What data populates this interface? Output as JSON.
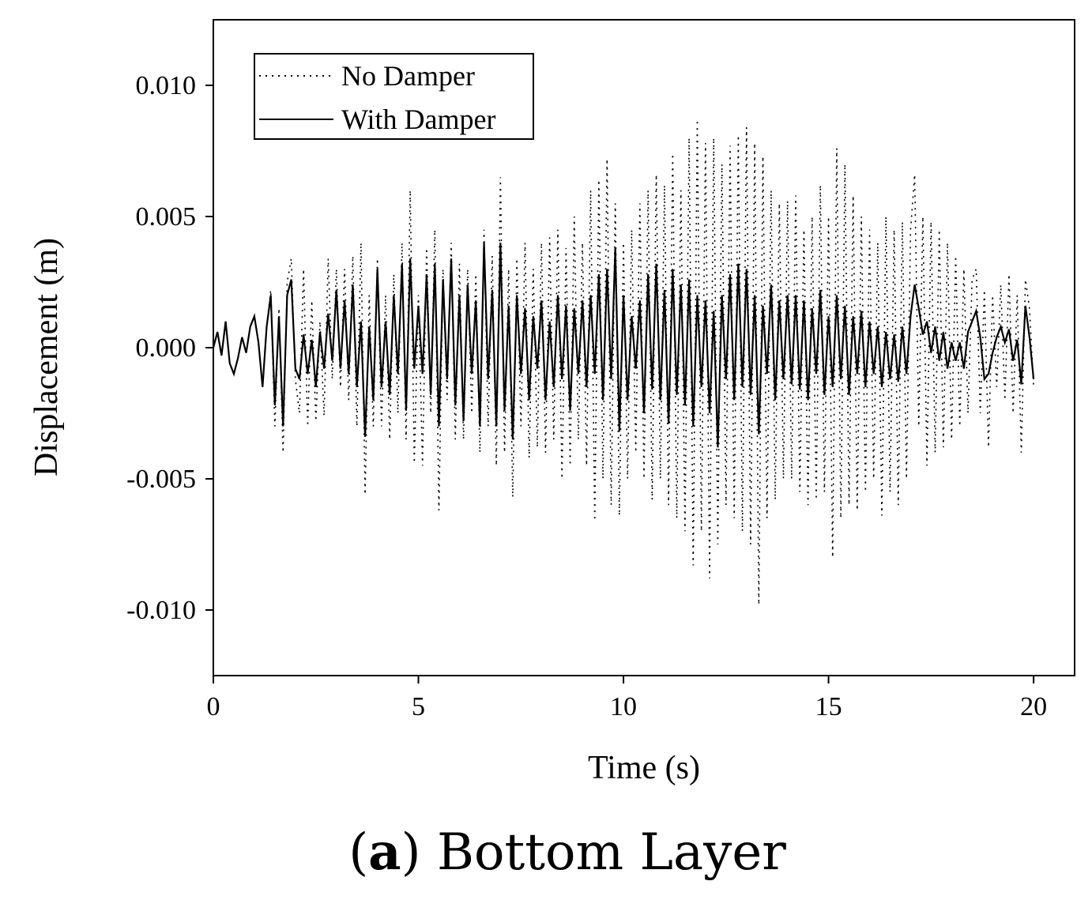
{
  "chart_data": {
    "type": "line",
    "x_label": "Time (s)",
    "y_label": "Displacement (m)",
    "caption_parts": [
      "(",
      "a",
      ") Bottom Layer"
    ],
    "xlim": [
      0,
      21.0
    ],
    "xticks": [
      0,
      5,
      10,
      15,
      20
    ],
    "ylim": [
      -0.0125,
      0.0125
    ],
    "yticks": [
      {
        "value": 0.01,
        "label": "0.010"
      },
      0.005,
      {
        "value": 0,
        "label": "0.000"
      },
      -0.005,
      {
        "value": -0.01,
        "label": "-0.010"
      }
    ],
    "legend": "upper left",
    "x": [
      0,
      0.1,
      0.2,
      0.3,
      0.4,
      0.5,
      0.6,
      0.7,
      0.8,
      0.9,
      1,
      1.1,
      1.2,
      1.3,
      1.4,
      1.5,
      1.6,
      1.7,
      1.8,
      1.9,
      2,
      2.1,
      2.2,
      2.3,
      2.4,
      2.5,
      2.6,
      2.7,
      2.8,
      2.9,
      3,
      3.1,
      3.2,
      3.3,
      3.4,
      3.5,
      3.6,
      3.7,
      3.8,
      3.9,
      4,
      4.1,
      4.2,
      4.3,
      4.4,
      4.5,
      4.6,
      4.7,
      4.8,
      4.9,
      5,
      5.1,
      5.2,
      5.3,
      5.4,
      5.5,
      5.6,
      5.7,
      5.8,
      5.9,
      6,
      6.1,
      6.2,
      6.3,
      6.4,
      6.5,
      6.6,
      6.7,
      6.8,
      6.9,
      7,
      7.1,
      7.2,
      7.3,
      7.4,
      7.5,
      7.6,
      7.7,
      7.8,
      7.9,
      8,
      8.1,
      8.2,
      8.3,
      8.4,
      8.5,
      8.6,
      8.7,
      8.8,
      8.9,
      9,
      9.1,
      9.2,
      9.3,
      9.4,
      9.5,
      9.6,
      9.7,
      9.8,
      9.9,
      10,
      10.1,
      10.2,
      10.3,
      10.4,
      10.5,
      10.6,
      10.7,
      10.8,
      10.9,
      11,
      11.1,
      11.2,
      11.3,
      11.4,
      11.5,
      11.6,
      11.7,
      11.8,
      11.9,
      12,
      12.1,
      12.2,
      12.3,
      12.4,
      12.5,
      12.6,
      12.7,
      12.8,
      12.9,
      13,
      13.1,
      13.2,
      13.3,
      13.4,
      13.5,
      13.6,
      13.7,
      13.8,
      13.9,
      14,
      14.1,
      14.2,
      14.3,
      14.4,
      14.5,
      14.6,
      14.7,
      14.8,
      14.9,
      15,
      15.1,
      15.2,
      15.3,
      15.4,
      15.5,
      15.6,
      15.7,
      15.8,
      15.9,
      16,
      16.1,
      16.2,
      16.3,
      16.4,
      16.5,
      16.6,
      16.7,
      16.8,
      16.9,
      17,
      17.1,
      17.2,
      17.3,
      17.4,
      17.5,
      17.6,
      17.7,
      17.8,
      17.9,
      18,
      18.1,
      18.2,
      18.3,
      18.4,
      18.5,
      18.6,
      18.7,
      18.8,
      18.9,
      19,
      19.1,
      19.2,
      19.3,
      19.4,
      19.5,
      19.6,
      19.7,
      19.8,
      19.9,
      20
    ],
    "series": [
      {
        "name": "No Damper",
        "color": "#000000",
        "style": "dotted",
        "values": [
          0,
          0.0006,
          -0.0003,
          0.001,
          -0.0006,
          -0.001,
          -0.0004,
          0.0004,
          -0.0002,
          0.0008,
          0.0012,
          0.0002,
          -0.0015,
          0.0008,
          0.0022,
          -0.003,
          0.0015,
          -0.004,
          0.0025,
          0.0034,
          -0.0012,
          -0.0025,
          0.003,
          -0.003,
          0.0018,
          -0.0028,
          0.001,
          -0.0026,
          0.0034,
          -0.0012,
          0.003,
          -0.0015,
          0.003,
          -0.002,
          0.0035,
          -0.003,
          0.004,
          -0.0056,
          0.002,
          -0.003,
          0.0034,
          -0.003,
          0.002,
          -0.0035,
          0.0028,
          -0.0025,
          0.004,
          -0.0035,
          0.006,
          -0.0044,
          0.002,
          -0.0045,
          0.0038,
          -0.0025,
          0.0045,
          -0.0062,
          0.003,
          -0.002,
          0.004,
          -0.0035,
          0.0032,
          -0.0035,
          0.003,
          -0.0025,
          0.0028,
          -0.004,
          0.0045,
          -0.003,
          0.0035,
          -0.0045,
          0.0065,
          -0.004,
          0.003,
          -0.0057,
          0.0034,
          -0.003,
          0.004,
          -0.0042,
          0.003,
          -0.0038,
          0.004,
          -0.004,
          0.0042,
          -0.0035,
          0.0045,
          -0.005,
          0.0038,
          -0.0045,
          0.005,
          -0.0035,
          0.004,
          -0.0045,
          0.006,
          -0.0066,
          0.0064,
          -0.005,
          0.0072,
          -0.006,
          0.0055,
          -0.0064,
          0.004,
          -0.005,
          0.0045,
          -0.004,
          0.0055,
          -0.005,
          0.006,
          -0.0058,
          0.0066,
          -0.005,
          0.0062,
          -0.006,
          0.0074,
          -0.0065,
          0.006,
          -0.007,
          0.008,
          -0.0083,
          0.0087,
          -0.007,
          0.0078,
          -0.0088,
          0.008,
          -0.0075,
          0.007,
          -0.006,
          0.0077,
          -0.0065,
          0.0081,
          -0.007,
          0.0084,
          -0.0075,
          0.0078,
          -0.0098,
          0.0073,
          -0.0065,
          0.006,
          -0.0058,
          0.0055,
          -0.005,
          0.0056,
          -0.005,
          0.0058,
          -0.0055,
          0.0045,
          -0.006,
          0.005,
          -0.0058,
          0.0062,
          -0.0055,
          0.005,
          -0.008,
          0.0076,
          -0.0065,
          0.007,
          -0.006,
          0.0058,
          -0.0062,
          0.005,
          -0.0055,
          0.0045,
          -0.005,
          0.004,
          -0.0064,
          0.005,
          -0.0055,
          0.0045,
          -0.006,
          0.0048,
          -0.005,
          0.0045,
          0.0066,
          -0.003,
          0.005,
          -0.0045,
          0.0048,
          -0.004,
          0.0045,
          -0.0038,
          0.004,
          -0.0035,
          0.0035,
          -0.003,
          0.003,
          -0.0025,
          0.0026,
          0.003,
          -0.0025,
          0.0022,
          -0.0038,
          0.002,
          -0.0015,
          0.0024,
          -0.002,
          0.0028,
          -0.0025,
          0.002,
          -0.004,
          0.0026,
          0.0015,
          -0.0015
        ]
      },
      {
        "name": "With Damper",
        "color": "#000000",
        "style": "solid",
        "values": [
          0,
          0.0006,
          -0.0003,
          0.001,
          -0.0006,
          -0.001,
          -0.0004,
          0.0004,
          -0.0002,
          0.0008,
          0.0012,
          0.0002,
          -0.0015,
          0.0008,
          0.002,
          -0.0022,
          0.0012,
          -0.003,
          0.002,
          0.0026,
          -0.0008,
          -0.0012,
          0.0005,
          -0.001,
          0.0003,
          -0.0015,
          0.0006,
          -0.0008,
          0.0013,
          -0.0005,
          0.0022,
          -0.0008,
          0.0018,
          -0.001,
          0.0024,
          -0.0015,
          0.001,
          -0.0034,
          0.0008,
          -0.002,
          0.003,
          -0.0015,
          0.001,
          -0.0018,
          0.002,
          -0.001,
          0.0032,
          -0.0024,
          0.0034,
          -0.0008,
          0.0016,
          -0.001,
          0.0028,
          -0.0018,
          0.0032,
          -0.003,
          0.0026,
          -0.0012,
          0.0034,
          -0.0022,
          0.002,
          -0.0028,
          0.0024,
          -0.001,
          0.0018,
          -0.003,
          0.004,
          -0.0012,
          0.0022,
          -0.003,
          0.004,
          -0.0024,
          0.0016,
          -0.0035,
          0.002,
          -0.001,
          0.0015,
          -0.002,
          0.0012,
          -0.0008,
          0.0018,
          -0.002,
          0.001,
          -0.0015,
          0.002,
          -0.0012,
          0.0016,
          -0.0024,
          0.0015,
          -0.001,
          0.0018,
          -0.0015,
          0.002,
          -0.001,
          0.0028,
          -0.002,
          0.003,
          -0.0012,
          0.0038,
          -0.0032,
          0.002,
          -0.002,
          0.0012,
          -0.0008,
          0.0018,
          -0.0025,
          0.0028,
          -0.0016,
          0.0032,
          -0.002,
          0.0022,
          -0.0029,
          0.003,
          -0.0018,
          0.0024,
          -0.0022,
          0.0026,
          -0.003,
          0.002,
          -0.0015,
          0.0018,
          -0.0025,
          0.0014,
          -0.0038,
          0.002,
          -0.0012,
          0.0028,
          -0.002,
          0.0032,
          -0.0015,
          0.003,
          -0.0018,
          0.002,
          -0.0033,
          0.0016,
          -0.001,
          0.0024,
          -0.002,
          0.0018,
          -0.0012,
          0.002,
          -0.0014,
          0.002,
          -0.0016,
          0.0018,
          -0.002,
          0.0015,
          -0.001,
          0.0022,
          -0.0018,
          0.0012,
          -0.0015,
          0.002,
          -0.0012,
          0.0016,
          -0.0018,
          0.0012,
          -0.001,
          0.0014,
          -0.0015,
          0.001,
          -0.001,
          0.0008,
          -0.0015,
          0.0006,
          -0.0012,
          0.0005,
          -0.0013,
          0.0008,
          -0.001,
          0.0012,
          0.0024,
          0.0015,
          0.0005,
          0.001,
          -0.0002,
          0.0008,
          -0.0005,
          0.0006,
          -0.0008,
          0.0002,
          -0.0005,
          0.0002,
          -0.0008,
          0.0006,
          0.001,
          0.0014,
          0.0004,
          -0.0012,
          -0.001,
          -0.0002,
          0.0004,
          0.0008,
          0.0002,
          0.0007,
          -0.0005,
          0.0003,
          -0.0014,
          0.0016,
          0.0004,
          -0.0012
        ]
      }
    ]
  }
}
